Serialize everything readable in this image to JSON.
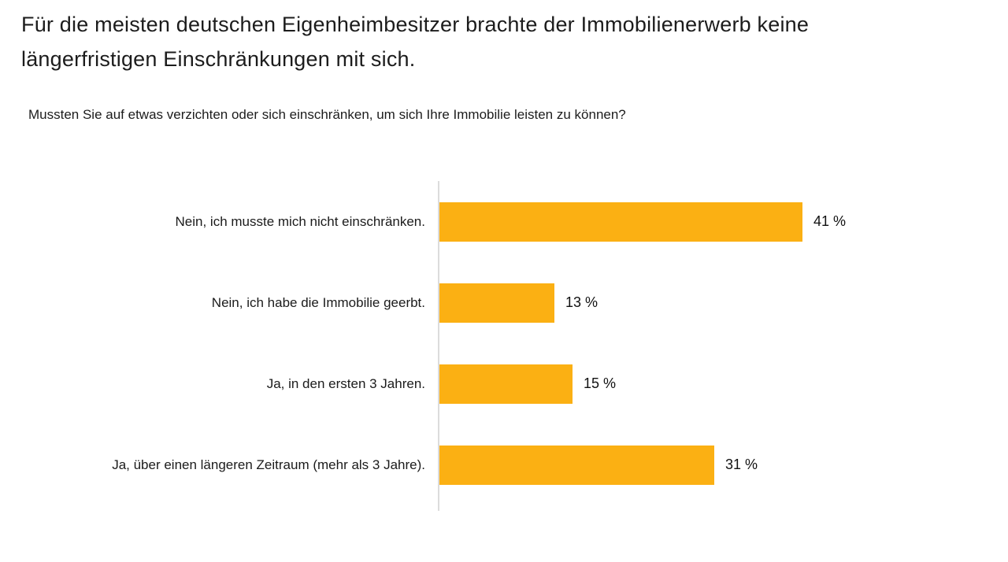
{
  "page": {
    "title": "Für die meisten deutschen Eigenheimbesitzer brachte der Immobilienerwerb keine längerfristigen Einschränkungen mit sich.",
    "question": "Mussten Sie auf etwas verzichten oder sich einschränken, um sich Ihre Immobilie leisten zu können?"
  },
  "chart_data": {
    "type": "bar",
    "orientation": "horizontal",
    "title": "Für die meisten deutschen Eigenheimbesitzer brachte der Immobilienerwerb keine längerfristigen Einschränkungen mit sich.",
    "subtitle": "Mussten Sie auf etwas verzichten oder sich einschränken, um sich Ihre Immobilie leisten zu können?",
    "categories": [
      "Nein, ich musste mich nicht einschränken.",
      "Nein, ich habe die Immobilie geerbt.",
      "Ja, in den ersten 3 Jahren.",
      "Ja, über einen längeren Zeitraum (mehr als 3 Jahre)."
    ],
    "values": [
      41,
      13,
      15,
      31
    ],
    "value_labels": [
      "41 %",
      "13 %",
      "15 %",
      "31 %"
    ],
    "unit": "%",
    "xlabel": "",
    "ylabel": "",
    "xlim": [
      0,
      53
    ],
    "grid": false,
    "legend": false,
    "bar_color": "#FBB013",
    "axis_line_color": "#dcdcdc",
    "value_label_position": "right-of-bar"
  }
}
